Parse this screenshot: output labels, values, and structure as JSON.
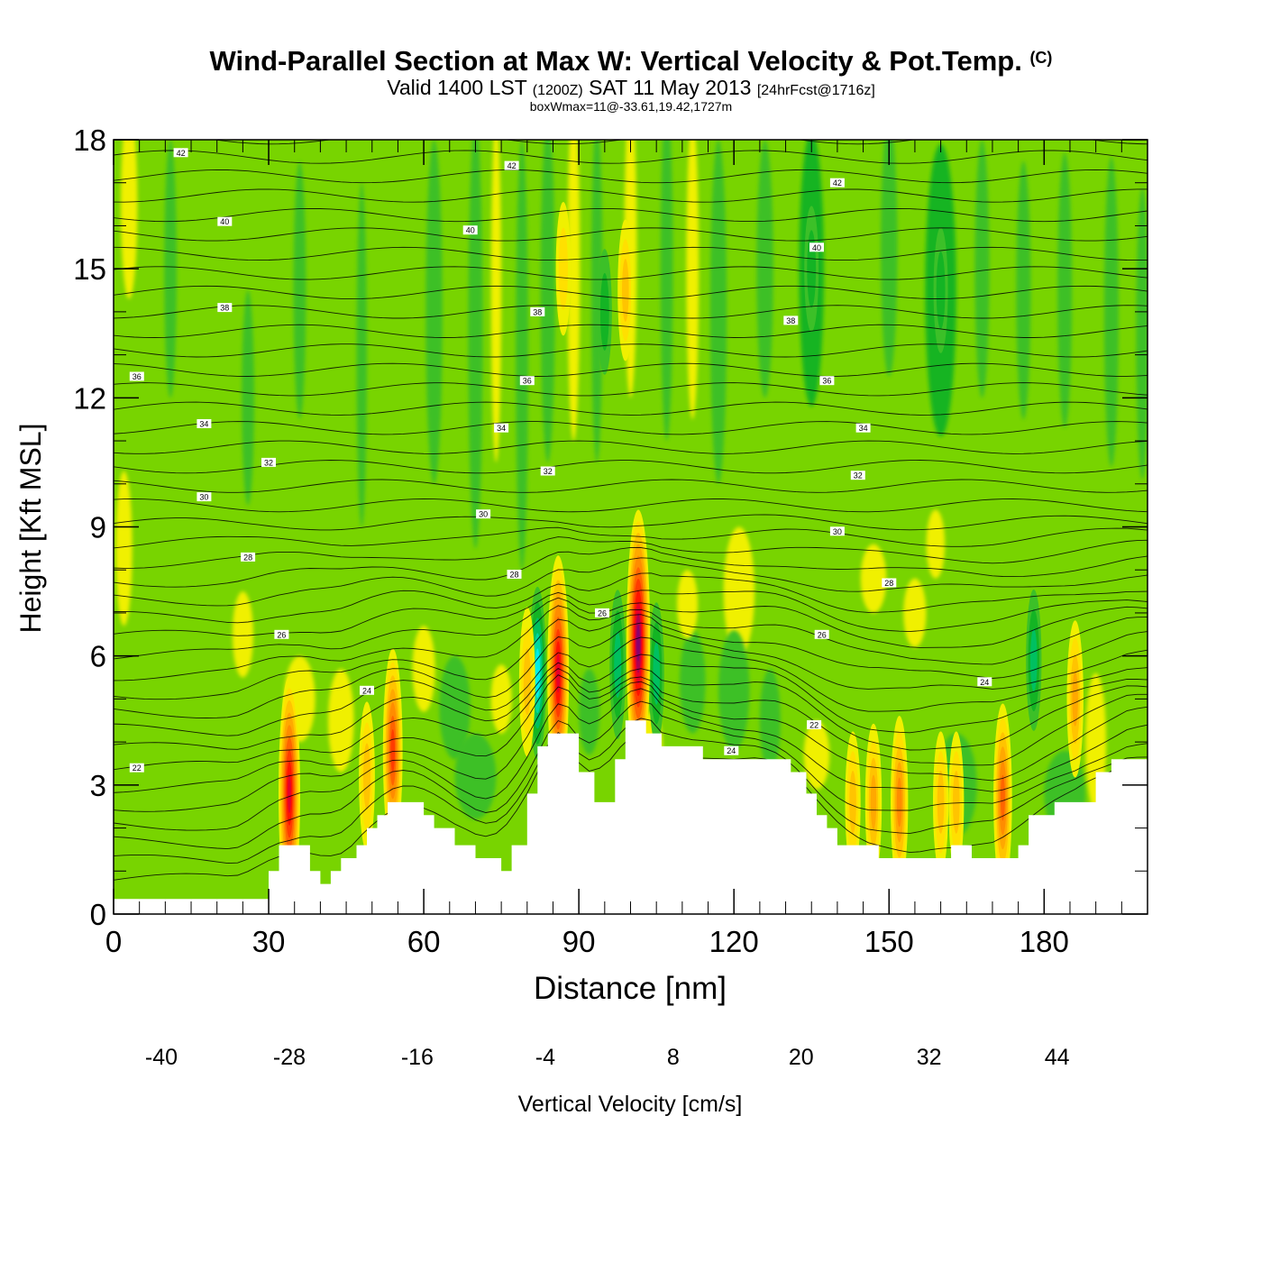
{
  "title": "Wind-Parallel Section at Max W: Vertical Velocity & Pot.Temp.",
  "copyright": "(C)",
  "subtitle_main": "Valid 1400 LST",
  "subtitle_utc": "(1200Z)",
  "subtitle_date": "SAT 11 May 2013",
  "subtitle_fcst": "[24hrFcst@1716z]",
  "subtitle_box": "boxWmax=11@-33.61,19.42,1727m",
  "chart_data": {
    "type": "heatmap",
    "title": "Wind-Parallel Section at Max W: Vertical Velocity & Pot.Temp.",
    "xlabel": "Distance [nm]",
    "ylabel": "Height [Kft MSL]",
    "xlim": [
      0,
      200
    ],
    "ylim": [
      0,
      18
    ],
    "x_ticks": [
      0,
      30,
      60,
      90,
      120,
      150,
      180
    ],
    "y_ticks": [
      0,
      3,
      6,
      9,
      12,
      15,
      18
    ],
    "colorbar": {
      "label": "Vertical Velocity [cm/s]",
      "levels": [
        -40,
        -36,
        -32,
        -28,
        -24,
        -20,
        -16,
        -12,
        -8,
        -4,
        0,
        4,
        8,
        12,
        16,
        20,
        24,
        28,
        32,
        36,
        40,
        44,
        48
      ],
      "tick_labels": [
        -40,
        -28,
        -16,
        -4,
        8,
        20,
        32,
        44
      ],
      "colors": [
        "#1a1aff",
        "#0050ff",
        "#0090ff",
        "#00c0ff",
        "#00eee8",
        "#00d8a0",
        "#00c060",
        "#14b424",
        "#3cc028",
        "#78d400",
        "#b4e600",
        "#f0f000",
        "#ffe000",
        "#ffc400",
        "#ffa800",
        "#ff8c00",
        "#ff6400",
        "#ff3c00",
        "#ff1400",
        "#e6002a",
        "#b00050",
        "#8a0070"
      ]
    },
    "updrafts": [
      {
        "x": 34,
        "z": 2.8,
        "w": 36
      },
      {
        "x": 54,
        "z": 3.8,
        "w": 28
      },
      {
        "x": 49,
        "z": 3.2,
        "w": 14
      },
      {
        "x": 80,
        "z": 5.4,
        "w": 14
      },
      {
        "x": 86,
        "z": 5.6,
        "w": 36
      },
      {
        "x": 101.5,
        "z": 6.3,
        "w": 44
      },
      {
        "x": 186,
        "z": 5.0,
        "w": 16
      },
      {
        "x": 172,
        "z": 2.7,
        "w": 24
      },
      {
        "x": 152,
        "z": 2.6,
        "w": 20
      },
      {
        "x": 160,
        "z": 2.6,
        "w": 12
      },
      {
        "x": 163,
        "z": 2.6,
        "w": 12
      },
      {
        "x": 147,
        "z": 2.6,
        "w": 16
      },
      {
        "x": 143,
        "z": 2.6,
        "w": 12
      },
      {
        "x": 99,
        "z": 14.5,
        "w": 12
      },
      {
        "x": 87,
        "z": 15.0,
        "w": 10
      }
    ],
    "downdrafts": [
      {
        "x": 82,
        "z": 5.6,
        "w": -20
      },
      {
        "x": 97.5,
        "z": 5.8,
        "w": -14
      },
      {
        "x": 105,
        "z": 5.6,
        "w": -12
      },
      {
        "x": 178,
        "z": 5.9,
        "w": -12
      },
      {
        "x": 135,
        "z": 15.0,
        "w": -8
      },
      {
        "x": 160,
        "z": 14.5,
        "w": -8
      },
      {
        "x": 95,
        "z": 14.0,
        "w": -8
      }
    ],
    "isentrope_labels": [
      {
        "x": 13,
        "z": 17.7,
        "label": "42"
      },
      {
        "x": 77,
        "z": 17.4,
        "label": "42"
      },
      {
        "x": 140,
        "z": 17.0,
        "label": "42"
      },
      {
        "x": 21.5,
        "z": 16.1,
        "label": "40"
      },
      {
        "x": 69,
        "z": 15.9,
        "label": "40"
      },
      {
        "x": 136,
        "z": 15.5,
        "label": "40"
      },
      {
        "x": 21.5,
        "z": 14.1,
        "label": "38"
      },
      {
        "x": 82,
        "z": 14.0,
        "label": "38"
      },
      {
        "x": 131,
        "z": 13.8,
        "label": "38"
      },
      {
        "x": 4.5,
        "z": 12.5,
        "label": "36"
      },
      {
        "x": 80,
        "z": 12.4,
        "label": "36"
      },
      {
        "x": 138,
        "z": 12.4,
        "label": "36"
      },
      {
        "x": 17.5,
        "z": 11.4,
        "label": "34"
      },
      {
        "x": 75,
        "z": 11.3,
        "label": "34"
      },
      {
        "x": 145,
        "z": 11.3,
        "label": "34"
      },
      {
        "x": 30,
        "z": 10.5,
        "label": "32"
      },
      {
        "x": 84,
        "z": 10.3,
        "label": "32"
      },
      {
        "x": 144,
        "z": 10.2,
        "label": "32"
      },
      {
        "x": 17.5,
        "z": 9.7,
        "label": "30"
      },
      {
        "x": 71.5,
        "z": 9.3,
        "label": "30"
      },
      {
        "x": 140,
        "z": 8.9,
        "label": "30"
      },
      {
        "x": 26,
        "z": 8.3,
        "label": "28"
      },
      {
        "x": 77.5,
        "z": 7.9,
        "label": "28"
      },
      {
        "x": 150,
        "z": 7.7,
        "label": "28"
      },
      {
        "x": 32.5,
        "z": 6.5,
        "label": "26"
      },
      {
        "x": 94.5,
        "z": 7.0,
        "label": "26"
      },
      {
        "x": 137,
        "z": 6.5,
        "label": "26"
      },
      {
        "x": 49,
        "z": 5.2,
        "label": "24"
      },
      {
        "x": 168.5,
        "z": 5.4,
        "label": "24"
      },
      {
        "x": 135.5,
        "z": 4.4,
        "label": "22"
      },
      {
        "x": 4.5,
        "z": 3.4,
        "label": "22"
      },
      {
        "x": 119.5,
        "z": 3.8,
        "label": "24"
      }
    ],
    "terrain": [
      [
        0,
        0.35
      ],
      [
        30,
        0.35
      ],
      [
        30,
        1.0
      ],
      [
        32,
        1.0
      ],
      [
        32,
        1.6
      ],
      [
        38,
        1.6
      ],
      [
        38,
        1.0
      ],
      [
        40,
        1.0
      ],
      [
        40,
        0.7
      ],
      [
        42,
        0.7
      ],
      [
        42,
        1.0
      ],
      [
        44,
        1.0
      ],
      [
        44,
        1.3
      ],
      [
        47,
        1.3
      ],
      [
        47,
        1.6
      ],
      [
        49,
        1.6
      ],
      [
        49,
        2.0
      ],
      [
        51,
        2.0
      ],
      [
        51,
        2.3
      ],
      [
        53,
        2.3
      ],
      [
        53,
        2.6
      ],
      [
        60,
        2.6
      ],
      [
        60,
        2.3
      ],
      [
        62,
        2.3
      ],
      [
        62,
        2.0
      ],
      [
        66,
        2.0
      ],
      [
        66,
        1.6
      ],
      [
        70,
        1.6
      ],
      [
        70,
        1.3
      ],
      [
        75,
        1.3
      ],
      [
        75,
        1.0
      ],
      [
        77,
        1.0
      ],
      [
        77,
        1.6
      ],
      [
        80,
        1.6
      ],
      [
        80,
        2.8
      ],
      [
        82,
        2.8
      ],
      [
        82,
        3.9
      ],
      [
        84,
        3.9
      ],
      [
        84,
        4.2
      ],
      [
        90,
        4.2
      ],
      [
        90,
        3.3
      ],
      [
        93,
        3.3
      ],
      [
        93,
        2.6
      ],
      [
        97,
        2.6
      ],
      [
        97,
        3.6
      ],
      [
        99,
        3.6
      ],
      [
        99,
        4.5
      ],
      [
        103,
        4.5
      ],
      [
        103,
        4.2
      ],
      [
        106,
        4.2
      ],
      [
        106,
        3.9
      ],
      [
        114,
        3.9
      ],
      [
        114,
        3.6
      ],
      [
        131,
        3.6
      ],
      [
        131,
        3.3
      ],
      [
        134,
        3.3
      ],
      [
        134,
        2.8
      ],
      [
        136,
        2.8
      ],
      [
        136,
        2.3
      ],
      [
        138,
        2.3
      ],
      [
        138,
        2.0
      ],
      [
        140,
        2.0
      ],
      [
        140,
        1.6
      ],
      [
        148,
        1.6
      ],
      [
        148,
        1.3
      ],
      [
        162,
        1.3
      ],
      [
        162,
        1.6
      ],
      [
        166,
        1.6
      ],
      [
        166,
        1.3
      ],
      [
        175,
        1.3
      ],
      [
        175,
        1.6
      ],
      [
        177,
        1.6
      ],
      [
        177,
        2.3
      ],
      [
        182,
        2.3
      ],
      [
        182,
        2.6
      ],
      [
        190,
        2.6
      ],
      [
        190,
        3.3
      ],
      [
        193,
        3.3
      ],
      [
        193,
        3.6
      ],
      [
        200,
        3.6
      ]
    ]
  }
}
